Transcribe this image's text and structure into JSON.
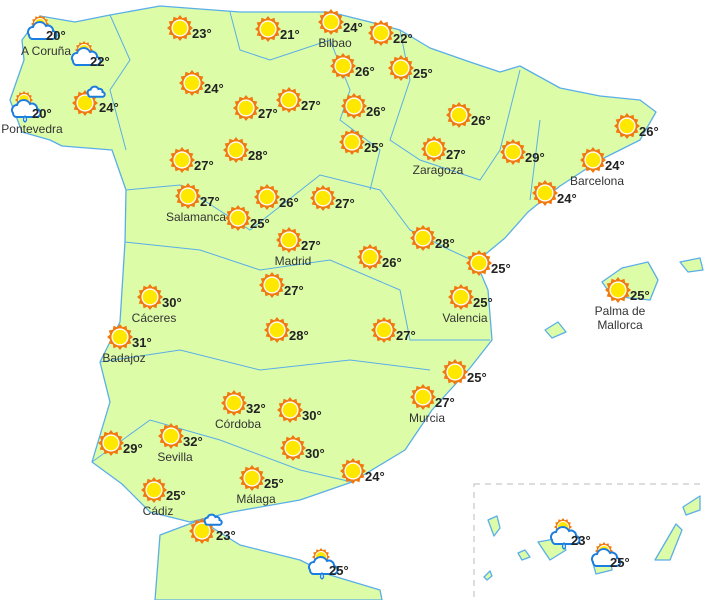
{
  "colors": {
    "land": "#dcfca8",
    "border": "#5aaee8",
    "sun_rays": "#f07a10",
    "sun_core": "#ffe800",
    "cloud": "#1a7ee0",
    "text": "#222222"
  },
  "points": [
    {
      "icon": "sun-cloud",
      "temp": "20°",
      "city": "A Coruña"
    },
    {
      "icon": "sun-cloud",
      "temp": "22°"
    },
    {
      "icon": "sun-cloud-rain",
      "temp": "20°",
      "city": "Pontevedra"
    },
    {
      "icon": "sun-small-cloud",
      "temp": "24°"
    },
    {
      "icon": "sun",
      "temp": "23°"
    },
    {
      "icon": "sun",
      "temp": "21°"
    },
    {
      "icon": "sun",
      "temp": "24°",
      "city": "Bilbao"
    },
    {
      "icon": "sun",
      "temp": "22°"
    },
    {
      "icon": "sun",
      "temp": "26°"
    },
    {
      "icon": "sun",
      "temp": "25°"
    },
    {
      "icon": "sun",
      "temp": "24°"
    },
    {
      "icon": "sun",
      "temp": "27°"
    },
    {
      "icon": "sun",
      "temp": "27°"
    },
    {
      "icon": "sun",
      "temp": "26°"
    },
    {
      "icon": "sun",
      "temp": "26°"
    },
    {
      "icon": "sun",
      "temp": "26°"
    },
    {
      "icon": "sun",
      "temp": "25°"
    },
    {
      "icon": "sun",
      "temp": "28°"
    },
    {
      "icon": "sun",
      "temp": "27°"
    },
    {
      "icon": "sun",
      "temp": "27°",
      "city": "Zaragoza"
    },
    {
      "icon": "sun",
      "temp": "29°"
    },
    {
      "icon": "sun",
      "temp": "24°",
      "city": "Barcelona"
    },
    {
      "icon": "sun",
      "temp": "24°"
    },
    {
      "icon": "sun",
      "temp": "27°",
      "city": "Salamanca"
    },
    {
      "icon": "sun",
      "temp": "26°"
    },
    {
      "icon": "sun",
      "temp": "27°"
    },
    {
      "icon": "sun",
      "temp": "25°"
    },
    {
      "icon": "sun",
      "temp": "27°",
      "city": "Madrid"
    },
    {
      "icon": "sun",
      "temp": "28°"
    },
    {
      "icon": "sun",
      "temp": "26°"
    },
    {
      "icon": "sun",
      "temp": "25°"
    },
    {
      "icon": "sun",
      "temp": "25°",
      "city": "Valencia"
    },
    {
      "icon": "sun",
      "temp": "25°",
      "city": "Palma de Mallorca"
    },
    {
      "icon": "sun",
      "temp": "30°",
      "city": "Cáceres"
    },
    {
      "icon": "sun",
      "temp": "27°"
    },
    {
      "icon": "sun",
      "temp": "31°",
      "city": "Badajoz"
    },
    {
      "icon": "sun",
      "temp": "28°"
    },
    {
      "icon": "sun",
      "temp": "27°"
    },
    {
      "icon": "sun",
      "temp": "25°"
    },
    {
      "icon": "sun",
      "temp": "27°",
      "city": "Murcia"
    },
    {
      "icon": "sun",
      "temp": "32°",
      "city": "Córdoba"
    },
    {
      "icon": "sun",
      "temp": "30°"
    },
    {
      "icon": "sun",
      "temp": "30°"
    },
    {
      "icon": "sun",
      "temp": "32°",
      "city": "Sevilla"
    },
    {
      "icon": "sun",
      "temp": "29°"
    },
    {
      "icon": "sun",
      "temp": "24°"
    },
    {
      "icon": "sun",
      "temp": "25°",
      "city": "Málaga"
    },
    {
      "icon": "sun",
      "temp": "25°",
      "city": "Cádiz"
    },
    {
      "icon": "sun-small-cloud",
      "temp": "23°"
    },
    {
      "icon": "sun-cloud-rain",
      "temp": "25°"
    },
    {
      "icon": "sun-cloud-rain",
      "temp": "23°"
    },
    {
      "icon": "sun-cloud",
      "temp": "25°"
    }
  ]
}
